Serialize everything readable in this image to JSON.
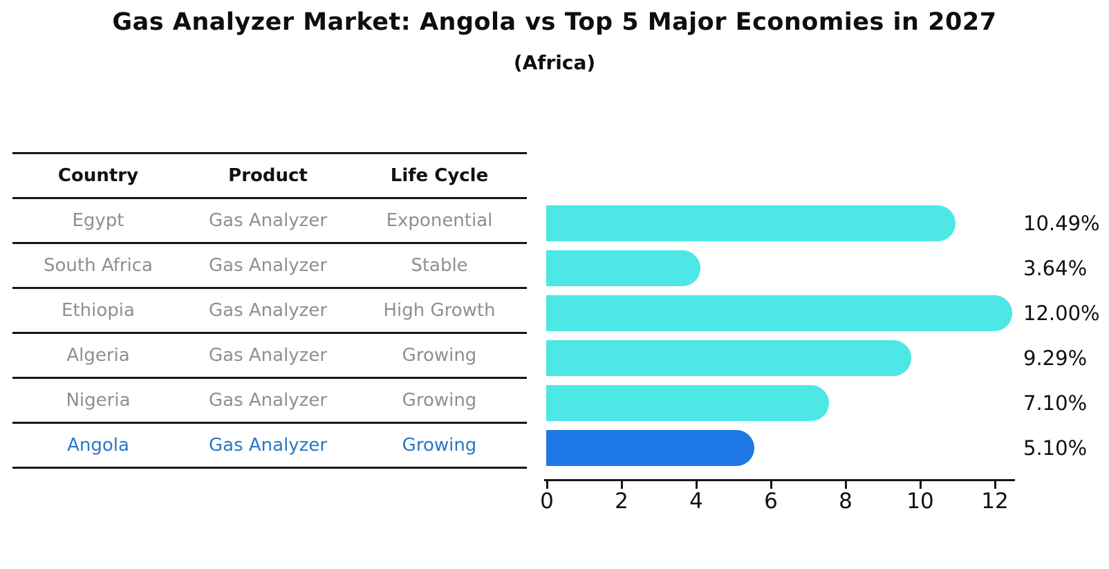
{
  "title": "Gas Analyzer Market: Angola vs Top 5 Major Economies in 2027",
  "subtitle": "(Africa)",
  "table": {
    "columns": [
      "Country",
      "Product",
      "Life Cycle"
    ],
    "rows": [
      {
        "country": "Egypt",
        "product": "Gas Analyzer",
        "life_cycle": "Exponential",
        "highlight": false
      },
      {
        "country": "South Africa",
        "product": "Gas Analyzer",
        "life_cycle": "Stable",
        "highlight": false
      },
      {
        "country": "Ethiopia",
        "product": "Gas Analyzer",
        "life_cycle": "High Growth",
        "highlight": false
      },
      {
        "country": "Algeria",
        "product": "Gas Analyzer",
        "life_cycle": "Growing",
        "highlight": false
      },
      {
        "country": "Nigeria",
        "product": "Gas Analyzer",
        "life_cycle": "Growing",
        "highlight": false
      },
      {
        "country": "Angola",
        "product": "Gas Analyzer",
        "life_cycle": "Growing",
        "highlight": true
      }
    ]
  },
  "chart_data": {
    "type": "bar",
    "orientation": "horizontal",
    "title": "Gas Analyzer Market: Angola vs Top 5 Major Economies in 2027",
    "subtitle": "(Africa)",
    "categories": [
      "Egypt",
      "South Africa",
      "Ethiopia",
      "Algeria",
      "Nigeria",
      "Angola"
    ],
    "values": [
      10.49,
      3.64,
      12.0,
      9.29,
      7.1,
      5.1
    ],
    "value_labels": [
      "10.49%",
      "3.64%",
      "12.00%",
      "9.29%",
      "7.10%",
      "5.10%"
    ],
    "xlabel": "",
    "ylabel": "",
    "xlim": [
      0,
      12.6
    ],
    "xticks": [
      0,
      2,
      4,
      6,
      8,
      10,
      12
    ],
    "grid": false,
    "legend": false,
    "highlight_index": 5,
    "highlight_style": "dotted-edge",
    "colors": {
      "bar": "#4DE8E6",
      "highlight_bar": "#1E78E6",
      "highlight_text": "#2878C8",
      "row_text": "#8F8F8F",
      "header_text": "#111111",
      "axis": "#161616"
    }
  }
}
